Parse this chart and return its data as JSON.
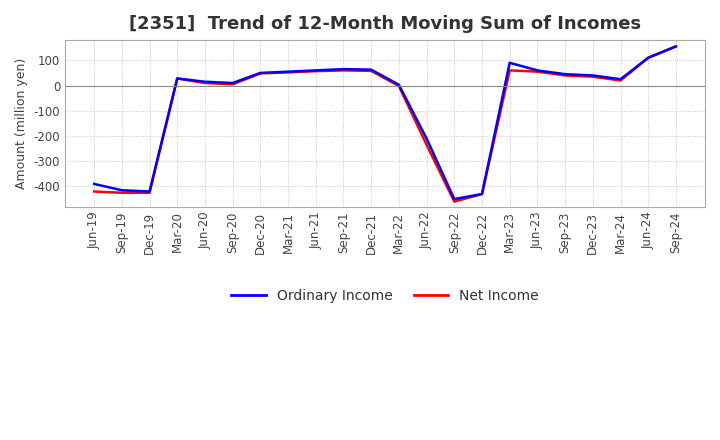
{
  "title": "[2351]  Trend of 12-Month Moving Sum of Incomes",
  "ylabel": "Amount (million yen)",
  "legend_labels": [
    "Ordinary Income",
    "Net Income"
  ],
  "line_colors": [
    "blue",
    "red"
  ],
  "x_labels": [
    "Jun-19",
    "Sep-19",
    "Dec-19",
    "Mar-20",
    "Jun-20",
    "Sep-20",
    "Dec-20",
    "Mar-21",
    "Jun-21",
    "Sep-21",
    "Dec-21",
    "Mar-22",
    "Jun-22",
    "Sep-22",
    "Dec-22",
    "Mar-23",
    "Jun-23",
    "Sep-23",
    "Dec-23",
    "Mar-24",
    "Jun-24",
    "Sep-24"
  ],
  "ordinary_income": [
    -390,
    -415,
    -420,
    28,
    15,
    10,
    50,
    55,
    60,
    65,
    63,
    3,
    -210,
    -450,
    -430,
    90,
    60,
    45,
    40,
    25,
    110,
    155
  ],
  "net_income": [
    -420,
    -425,
    -425,
    28,
    10,
    5,
    48,
    52,
    57,
    60,
    58,
    -2,
    -235,
    -460,
    -430,
    60,
    55,
    40,
    35,
    20,
    110,
    155
  ],
  "ylim": [
    -480,
    180
  ],
  "yticks": [
    -400,
    -300,
    -200,
    -100,
    0,
    100
  ],
  "background_color": "#ffffff",
  "grid_color": "#bbbbbb",
  "title_fontsize": 13,
  "axis_fontsize": 9,
  "tick_fontsize": 8.5
}
